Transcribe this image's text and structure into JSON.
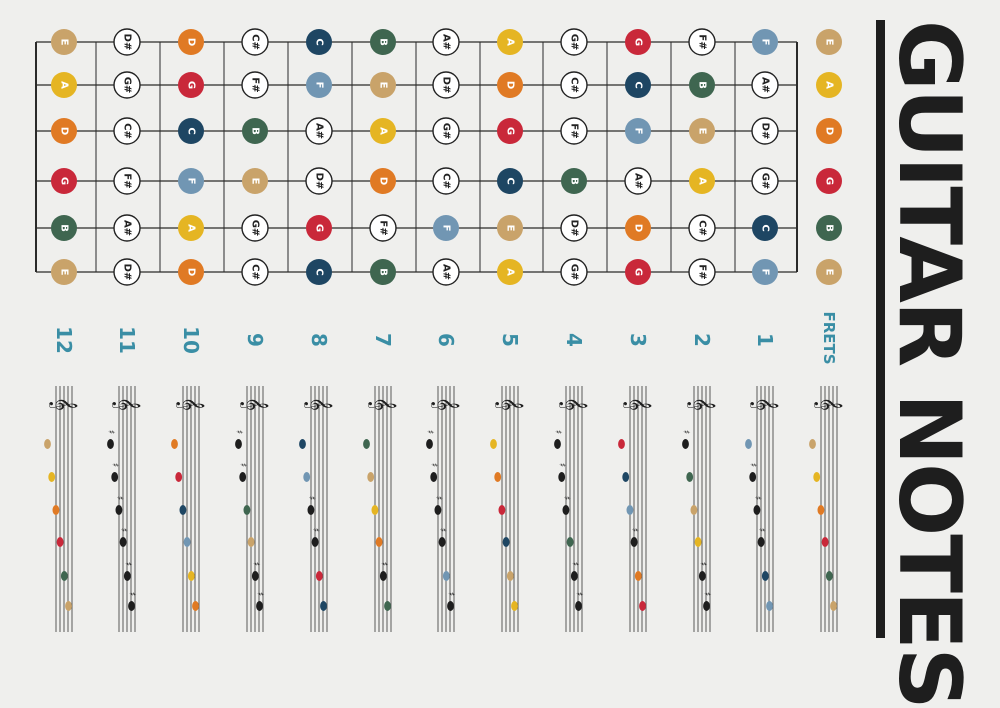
{
  "title": "GUITAR NOTES",
  "frets_label": "FRETS",
  "open_strings": [
    "E",
    "A",
    "D",
    "G",
    "B",
    "E"
  ],
  "fret_numbers": [
    "12",
    "11",
    "10",
    "9",
    "8",
    "7",
    "6",
    "5",
    "4",
    "3",
    "2",
    "1"
  ],
  "columns": [
    {
      "fret": "12",
      "notes": [
        "E",
        "A",
        "D",
        "G",
        "B",
        "E"
      ]
    },
    {
      "fret": "11",
      "notes": [
        "D#",
        "G#",
        "C#",
        "F#",
        "A#",
        "D#"
      ]
    },
    {
      "fret": "10",
      "notes": [
        "D",
        "G",
        "C",
        "F",
        "A",
        "D"
      ]
    },
    {
      "fret": "9",
      "notes": [
        "C#",
        "F#",
        "B",
        "E",
        "G#",
        "C#"
      ]
    },
    {
      "fret": "8",
      "notes": [
        "C",
        "F",
        "A#",
        "D#",
        "G",
        "C"
      ]
    },
    {
      "fret": "7",
      "notes": [
        "B",
        "E",
        "A",
        "D",
        "F#",
        "B"
      ]
    },
    {
      "fret": "6",
      "notes": [
        "A#",
        "D#",
        "G#",
        "C#",
        "F",
        "A#"
      ]
    },
    {
      "fret": "5",
      "notes": [
        "A",
        "D",
        "G",
        "C",
        "E",
        "A"
      ]
    },
    {
      "fret": "4",
      "notes": [
        "G#",
        "C#",
        "F#",
        "B",
        "D#",
        "G#"
      ]
    },
    {
      "fret": "3",
      "notes": [
        "G",
        "C",
        "F",
        "A#",
        "D",
        "G"
      ]
    },
    {
      "fret": "2",
      "notes": [
        "F#",
        "B",
        "E",
        "A",
        "C#",
        "F#"
      ]
    },
    {
      "fret": "1",
      "notes": [
        "F",
        "A#",
        "D#",
        "G#",
        "C",
        "F"
      ]
    }
  ],
  "note_colors": {
    "E": "#c9a36a",
    "A": "#e5b523",
    "D": "#e07a24",
    "G": "#c9283a",
    "C": "#1e4663",
    "B": "#3f6650",
    "F": "#7196b3",
    "sharp": "#ffffff"
  },
  "accent_color": "#3a8ea5",
  "clef_glyph": "𝄞"
}
